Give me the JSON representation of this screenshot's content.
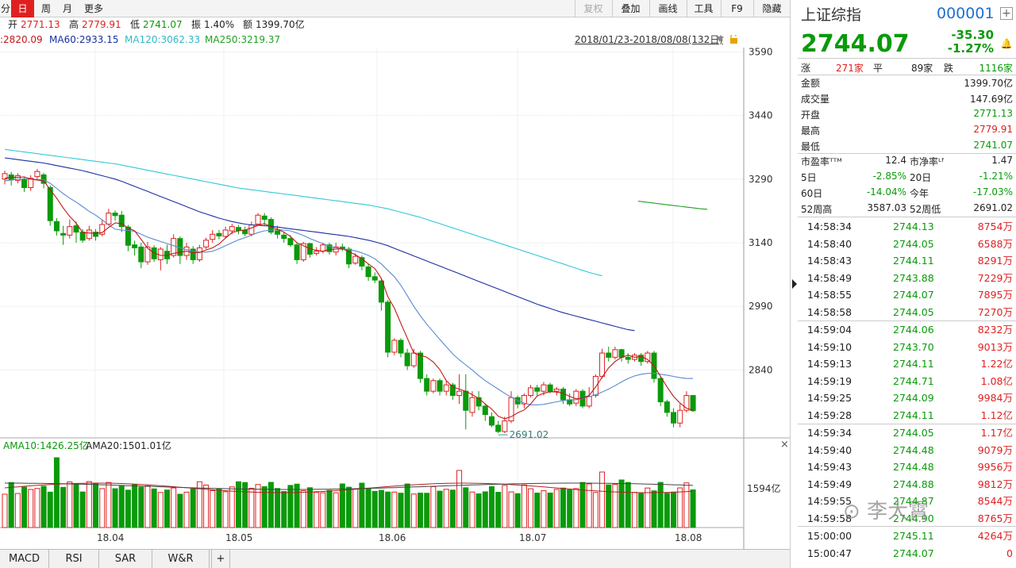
{
  "toolbar": {
    "items": [
      {
        "label": "分"
      },
      {
        "label": "日"
      },
      {
        "label": "周"
      },
      {
        "label": "月"
      },
      {
        "label": "更多"
      }
    ],
    "right_items": [
      {
        "label": "复权"
      },
      {
        "label": "叠加"
      },
      {
        "label": "画线"
      },
      {
        "label": "工具"
      },
      {
        "label": "F9"
      },
      {
        "label": "隐藏"
      }
    ]
  },
  "quote_bar": {
    "open_label": "开",
    "open": "2771.13",
    "high_label": "高",
    "high": "2779.91",
    "low_label": "低",
    "low": "2741.07",
    "amp_label": "振",
    "amp": "1.40%",
    "amount_label": "额",
    "amount": "1399.70亿"
  },
  "ma_bar": {
    "ma_short": ":2820.09",
    "ma60": "MA60:2933.15",
    "ma120": "MA120:3062.33",
    "ma250": "MA250:3219.37",
    "range": "2018/01/23-2018/08/08(132日)"
  },
  "volume_bar": {
    "ama10": "AMA10:1426.25亿",
    "ama20": "AMA20:1501.01亿",
    "axis_label": "1594亿"
  },
  "bottom_tabs": [
    {
      "label": "MACD"
    },
    {
      "label": "RSI"
    },
    {
      "label": "SAR"
    },
    {
      "label": "W&R"
    },
    {
      "label": "+"
    }
  ],
  "colors": {
    "up": "#e02020",
    "down": "#0a9a0a",
    "ma5": "#c01818",
    "ma10": "#5a8ad0",
    "ma60": "#1a2fa0",
    "ma120": "#33c8d8",
    "ma250": "#22a022"
  },
  "chart_data": {
    "type": "candlestick",
    "y_ticks": [
      "3590",
      "3440",
      "3290",
      "3140",
      "2990",
      "2840"
    ],
    "x_ticks": [
      "18.04",
      "18.05",
      "18.06",
      "18.07",
      "18.08"
    ],
    "y_range": [
      2680,
      3600
    ],
    "min_annotation": "2691.02",
    "candles": [
      [
        3290,
        3303,
        3278,
        3310
      ],
      [
        3300,
        3288,
        3275,
        3307
      ],
      [
        3287,
        3298,
        3280,
        3304
      ],
      [
        3290,
        3270,
        3260,
        3296
      ],
      [
        3270,
        3292,
        3262,
        3299
      ],
      [
        3296,
        3308,
        3290,
        3314
      ],
      [
        3300,
        3280,
        3268,
        3305
      ],
      [
        3270,
        3192,
        3180,
        3275
      ],
      [
        3190,
        3168,
        3157,
        3198
      ],
      [
        3162,
        3158,
        3135,
        3180
      ],
      [
        3158,
        3178,
        3150,
        3195
      ],
      [
        3180,
        3165,
        3140,
        3190
      ],
      [
        3165,
        3146,
        3140,
        3172
      ],
      [
        3150,
        3170,
        3145,
        3180
      ],
      [
        3165,
        3155,
        3145,
        3172
      ],
      [
        3160,
        3183,
        3155,
        3195
      ],
      [
        3184,
        3210,
        3180,
        3220
      ],
      [
        3210,
        3204,
        3192,
        3216
      ],
      [
        3205,
        3178,
        3165,
        3215
      ],
      [
        3177,
        3134,
        3120,
        3182
      ],
      [
        3135,
        3128,
        3110,
        3145
      ],
      [
        3130,
        3095,
        3080,
        3140
      ],
      [
        3095,
        3130,
        3088,
        3142
      ],
      [
        3128,
        3102,
        3095,
        3134
      ],
      [
        3100,
        3125,
        3075,
        3130
      ],
      [
        3120,
        3102,
        3090,
        3135
      ],
      [
        3110,
        3150,
        3105,
        3160
      ],
      [
        3150,
        3110,
        3090,
        3155
      ],
      [
        3110,
        3130,
        3100,
        3140
      ],
      [
        3125,
        3100,
        3090,
        3132
      ],
      [
        3100,
        3128,
        3095,
        3135
      ],
      [
        3130,
        3146,
        3125,
        3152
      ],
      [
        3148,
        3160,
        3140,
        3170
      ],
      [
        3162,
        3156,
        3148,
        3170
      ],
      [
        3155,
        3170,
        3150,
        3178
      ],
      [
        3168,
        3178,
        3160,
        3185
      ],
      [
        3176,
        3169,
        3160,
        3182
      ],
      [
        3170,
        3161,
        3155,
        3178
      ],
      [
        3160,
        3182,
        3155,
        3190
      ],
      [
        3184,
        3205,
        3180,
        3210
      ],
      [
        3203,
        3195,
        3180,
        3210
      ],
      [
        3195,
        3165,
        3160,
        3200
      ],
      [
        3168,
        3160,
        3150,
        3180
      ],
      [
        3158,
        3150,
        3140,
        3165
      ],
      [
        3150,
        3135,
        3130,
        3158
      ],
      [
        3135,
        3100,
        3090,
        3140
      ],
      [
        3100,
        3138,
        3095,
        3142
      ],
      [
        3138,
        3113,
        3105,
        3140
      ],
      [
        3115,
        3120,
        3110,
        3130
      ],
      [
        3120,
        3135,
        3115,
        3140
      ],
      [
        3135,
        3119,
        3112,
        3140
      ],
      [
        3118,
        3130,
        3110,
        3140
      ],
      [
        3130,
        3125,
        3120,
        3138
      ],
      [
        3125,
        3090,
        3080,
        3130
      ],
      [
        3092,
        3108,
        3088,
        3115
      ],
      [
        3105,
        3085,
        3075,
        3110
      ],
      [
        3083,
        3060,
        3050,
        3090
      ],
      [
        3060,
        3052,
        3045,
        3070
      ],
      [
        3050,
        3000,
        2980,
        3055
      ],
      [
        3000,
        2882,
        2870,
        3005
      ],
      [
        2882,
        2910,
        2875,
        2915
      ],
      [
        2910,
        2880,
        2870,
        2915
      ],
      [
        2880,
        2850,
        2840,
        2890
      ],
      [
        2850,
        2880,
        2845,
        2890
      ],
      [
        2880,
        2820,
        2810,
        2885
      ],
      [
        2820,
        2790,
        2780,
        2830
      ],
      [
        2790,
        2815,
        2785,
        2820
      ],
      [
        2815,
        2790,
        2780,
        2820
      ],
      [
        2790,
        2805,
        2780,
        2815
      ],
      [
        2805,
        2780,
        2770,
        2810
      ],
      [
        2780,
        2790,
        2760,
        2830
      ],
      [
        2790,
        2745,
        2700,
        2830
      ],
      [
        2740,
        2775,
        2730,
        2790
      ],
      [
        2775,
        2755,
        2745,
        2790
      ],
      [
        2755,
        2735,
        2720,
        2760
      ],
      [
        2730,
        2710,
        2705,
        2740
      ],
      [
        2710,
        2695,
        2691,
        2720
      ],
      [
        2695,
        2720,
        2691,
        2730
      ],
      [
        2720,
        2775,
        2715,
        2790
      ],
      [
        2775,
        2760,
        2750,
        2780
      ],
      [
        2760,
        2780,
        2750,
        2785
      ],
      [
        2780,
        2798,
        2775,
        2805
      ],
      [
        2798,
        2790,
        2780,
        2805
      ],
      [
        2790,
        2805,
        2780,
        2812
      ],
      [
        2805,
        2790,
        2785,
        2810
      ],
      [
        2790,
        2795,
        2780,
        2800
      ],
      [
        2795,
        2770,
        2760,
        2800
      ],
      [
        2770,
        2760,
        2755,
        2785
      ],
      [
        2762,
        2790,
        2755,
        2795
      ],
      [
        2790,
        2755,
        2750,
        2795
      ],
      [
        2755,
        2778,
        2750,
        2800
      ],
      [
        2780,
        2825,
        2775,
        2830
      ],
      [
        2825,
        2880,
        2820,
        2890
      ],
      [
        2880,
        2870,
        2860,
        2895
      ],
      [
        2870,
        2888,
        2865,
        2895
      ],
      [
        2888,
        2870,
        2860,
        2890
      ],
      [
        2870,
        2865,
        2855,
        2880
      ],
      [
        2865,
        2875,
        2860,
        2880
      ],
      [
        2875,
        2860,
        2850,
        2880
      ],
      [
        2860,
        2880,
        2855,
        2885
      ],
      [
        2880,
        2820,
        2810,
        2885
      ],
      [
        2820,
        2765,
        2755,
        2825
      ],
      [
        2765,
        2740,
        2730,
        2770
      ],
      [
        2740,
        2715,
        2705,
        2750
      ],
      [
        2715,
        2745,
        2705,
        2760
      ],
      [
        2745,
        2780,
        2740,
        2790
      ],
      [
        2780,
        2744,
        2741,
        2780
      ]
    ],
    "ma5": [
      3292,
      3294,
      3294,
      3295,
      3290,
      3288,
      3286,
      3265,
      3245,
      3222,
      3202,
      3186,
      3164,
      3163,
      3162,
      3164,
      3176,
      3187,
      3185,
      3175,
      3168,
      3148,
      3127,
      3116,
      3110,
      3110,
      3115,
      3118,
      3120,
      3117,
      3117,
      3123,
      3128,
      3137,
      3151,
      3164,
      3168,
      3170,
      3175,
      3181,
      3185,
      3178,
      3172,
      3165,
      3155,
      3140,
      3133,
      3126,
      3122,
      3120,
      3124,
      3125,
      3126,
      3119,
      3112,
      3102,
      3090,
      3079,
      3056,
      3013,
      2986,
      2950,
      2915,
      2880,
      2875,
      2870,
      2859,
      2841,
      2815,
      2800,
      2795,
      2790,
      2782,
      2773,
      2760,
      2748,
      2731,
      2725,
      2730,
      2739,
      2746,
      2760,
      2779,
      2785,
      2789,
      2788,
      2785,
      2778,
      2772,
      2774,
      2780,
      2800,
      2823,
      2845,
      2860,
      2870,
      2875,
      2870,
      2872,
      2865,
      2850,
      2825,
      2800,
      2778,
      2762,
      2750,
      2745
    ],
    "ma10": [
      3286,
      3288,
      3290,
      3290,
      3290,
      3289,
      3288,
      3280,
      3268,
      3256,
      3245,
      3236,
      3225,
      3214,
      3205,
      3194,
      3182,
      3172,
      3170,
      3169,
      3167,
      3160,
      3153,
      3148,
      3143,
      3138,
      3133,
      3128,
      3124,
      3120,
      3118,
      3118,
      3120,
      3126,
      3133,
      3140,
      3147,
      3152,
      3158,
      3164,
      3168,
      3170,
      3171,
      3170,
      3168,
      3163,
      3157,
      3150,
      3144,
      3138,
      3132,
      3128,
      3126,
      3124,
      3121,
      3116,
      3110,
      3102,
      3090,
      3075,
      3060,
      3040,
      3015,
      2990,
      2968,
      2948,
      2930,
      2912,
      2895,
      2878,
      2864,
      2852,
      2840,
      2827,
      2815,
      2805,
      2795,
      2785,
      2776,
      2768,
      2762,
      2758,
      2758,
      2759,
      2762,
      2765,
      2768,
      2770,
      2770,
      2773,
      2777,
      2782,
      2788,
      2795,
      2803,
      2812,
      2820,
      2826,
      2830,
      2832,
      2832,
      2830,
      2828,
      2825,
      2822,
      2820,
      2820
    ],
    "ma60": [
      3340,
      3338,
      3336,
      3334,
      3332,
      3330,
      3328,
      3325,
      3322,
      3319,
      3316,
      3313,
      3310,
      3306,
      3302,
      3298,
      3294,
      3290,
      3285,
      3279,
      3273,
      3267,
      3261,
      3255,
      3249,
      3243,
      3237,
      3231,
      3225,
      3219,
      3213,
      3208,
      3203,
      3198,
      3194,
      3190,
      3187,
      3184,
      3182,
      3181,
      3180,
      3179,
      3177,
      3175,
      3173,
      3171,
      3169,
      3167,
      3165,
      3163,
      3161,
      3159,
      3157,
      3155,
      3152,
      3149,
      3146,
      3142,
      3138,
      3133,
      3127,
      3121,
      3115,
      3109,
      3103,
      3097,
      3091,
      3085,
      3079,
      3073,
      3067,
      3061,
      3055,
      3049,
      3043,
      3037,
      3031,
      3025,
      3019,
      3013,
      3007,
      3001,
      2995,
      2990,
      2985,
      2980,
      2975,
      2971,
      2967,
      2963,
      2959,
      2955,
      2951,
      2947,
      2943,
      2939,
      2935,
      2933
    ],
    "ma120": [
      3360,
      3358,
      3356,
      3354,
      3352,
      3350,
      3348,
      3346,
      3344,
      3342,
      3340,
      3338,
      3336,
      3334,
      3332,
      3330,
      3328,
      3326,
      3323,
      3320,
      3317,
      3314,
      3311,
      3308,
      3305,
      3302,
      3299,
      3296,
      3293,
      3290,
      3287,
      3284,
      3281,
      3278,
      3275,
      3272,
      3269,
      3267,
      3265,
      3263,
      3261,
      3259,
      3257,
      3255,
      3253,
      3251,
      3249,
      3247,
      3245,
      3243,
      3241,
      3239,
      3237,
      3235,
      3233,
      3231,
      3229,
      3226,
      3223,
      3220,
      3216,
      3212,
      3208,
      3204,
      3200,
      3195,
      3190,
      3185,
      3180,
      3175,
      3170,
      3165,
      3160,
      3155,
      3150,
      3145,
      3140,
      3135,
      3130,
      3125,
      3120,
      3115,
      3110,
      3105,
      3100,
      3095,
      3090,
      3085,
      3080,
      3075,
      3070,
      3066,
      3062
    ],
    "ma250": [
      3238,
      3236,
      3234,
      3232,
      3230,
      3228,
      3226,
      3224,
      3222,
      3220,
      3219
    ]
  }
}
